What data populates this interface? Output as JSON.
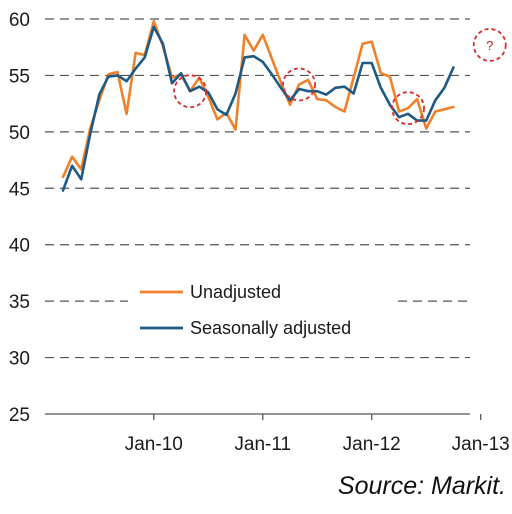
{
  "chart_data": {
    "type": "line",
    "title": "",
    "xlabel": "",
    "ylabel": "",
    "ylim": [
      25,
      60
    ],
    "yticks": [
      25,
      30,
      35,
      40,
      45,
      50,
      55,
      60
    ],
    "x_tick_labels": [
      "Jan-10",
      "Jan-11",
      "Jan-12",
      "Jan-13"
    ],
    "x_start": "2009-03",
    "x_end": "2013-02",
    "grid": "horizontal dashed",
    "legend_placement": "center-left",
    "series": [
      {
        "name": "Unadjusted",
        "color": "#f0812a",
        "values": [
          46.0,
          47.8,
          46.7,
          50.3,
          52.8,
          55.1,
          55.3,
          51.6,
          57.0,
          56.8,
          59.8,
          57.6,
          54.8,
          55.1,
          53.6,
          54.8,
          53.1,
          51.1,
          51.7,
          50.2,
          58.6,
          57.2,
          58.6,
          56.5,
          54.4,
          52.4,
          54.2,
          54.6,
          52.9,
          52.8,
          52.2,
          51.8,
          54.8,
          57.8,
          58.0,
          55.2,
          54.9,
          51.8,
          52.1,
          52.9,
          50.3,
          51.8,
          52.0,
          52.2
        ]
      },
      {
        "name": "Seasonally adjusted",
        "color": "#1f5a85",
        "values": [
          44.8,
          47.0,
          45.8,
          49.8,
          53.3,
          54.9,
          55.0,
          54.5,
          55.6,
          56.6,
          59.3,
          57.8,
          54.3,
          55.2,
          53.6,
          54.0,
          53.5,
          52.0,
          51.5,
          53.4,
          56.6,
          56.7,
          56.2,
          55.1,
          53.9,
          52.8,
          53.8,
          53.6,
          53.6,
          53.3,
          53.9,
          54.0,
          53.4,
          56.1,
          56.1,
          53.9,
          52.4,
          51.3,
          51.6,
          51.0,
          51.0,
          52.8,
          53.9,
          55.7
        ]
      }
    ],
    "highlight_markers": [
      {
        "series": "Unadjusted",
        "x": "2010-05"
      },
      {
        "series": "Unadjusted",
        "x": "2011-05"
      },
      {
        "series": "Unadjusted",
        "x": "2012-05"
      },
      {
        "label": "?",
        "x": "2013-02",
        "y": 57.7
      }
    ]
  },
  "legend": {
    "items": [
      {
        "label": "Unadjusted",
        "color": "#f0812a"
      },
      {
        "label": "Seasonally adjusted",
        "color": "#1f5a85"
      }
    ]
  },
  "source": "Source: Markit.",
  "colors": {
    "grid": "#555555",
    "axis": "#555555",
    "highlight": "#d92b2b",
    "highlight_label": "#cc1e1e"
  }
}
